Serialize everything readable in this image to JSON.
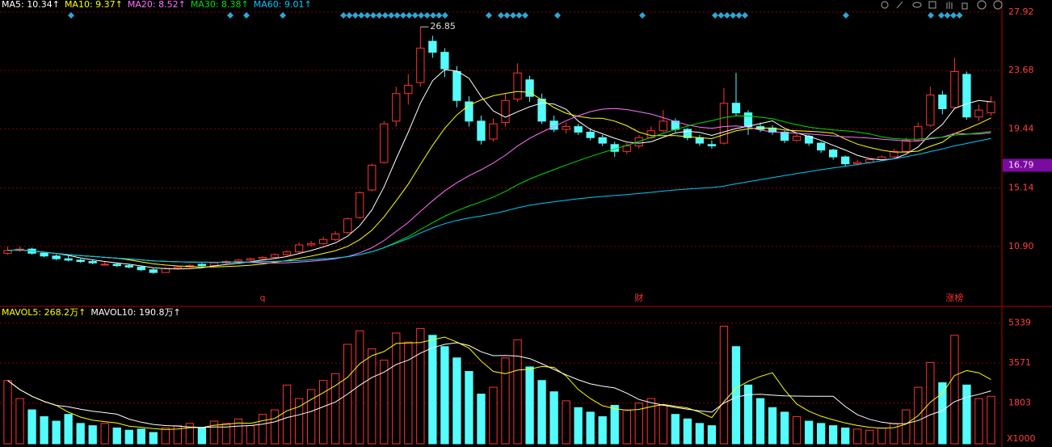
{
  "chart_data": {
    "type": "candlestick",
    "legend": [
      {
        "name": "MA5: 10.34↑",
        "color": "#ffffff",
        "period": 5
      },
      {
        "name": "MA10: 9.37↑",
        "color": "#ffff00",
        "period": 10
      },
      {
        "name": "MA20: 8.52↑",
        "color": "#ff70ff",
        "period": 20
      },
      {
        "name": "MA30: 8.38↑",
        "color": "#00e000",
        "period": 30
      },
      {
        "name": "MA60: 9.01↑",
        "color": "#00c8ff",
        "period": 60
      }
    ],
    "up_color": "#ff3232",
    "down_color": "#54fcfc",
    "ylim": [
      6.6,
      28.8
    ],
    "yticks": [
      {
        "value": 10.9,
        "label": "10.90"
      },
      15.14,
      19.44,
      23.68,
      27.92
    ],
    "last_price": 16.79,
    "ohlc": [
      [
        10.4,
        10.9,
        10.3,
        10.6
      ],
      [
        10.6,
        10.9,
        10.5,
        10.7
      ],
      [
        10.7,
        10.8,
        10.3,
        10.4
      ],
      [
        10.4,
        10.5,
        10.1,
        10.2
      ],
      [
        10.2,
        10.3,
        9.9,
        10.0
      ],
      [
        10.0,
        10.2,
        9.8,
        9.9
      ],
      [
        9.9,
        10.0,
        9.7,
        9.8
      ],
      [
        9.8,
        9.9,
        9.6,
        9.7
      ],
      [
        9.6,
        9.8,
        9.5,
        9.6
      ],
      [
        9.6,
        9.7,
        9.4,
        9.5
      ],
      [
        9.5,
        9.6,
        9.3,
        9.4
      ],
      [
        9.4,
        9.5,
        9.1,
        9.2
      ],
      [
        9.2,
        9.3,
        8.9,
        9.0
      ],
      [
        9.0,
        9.4,
        9.0,
        9.3
      ],
      [
        9.3,
        9.5,
        9.2,
        9.4
      ],
      [
        9.4,
        9.6,
        9.3,
        9.5
      ],
      [
        9.6,
        9.7,
        9.4,
        9.5
      ],
      [
        9.5,
        9.8,
        9.4,
        9.7
      ],
      [
        9.7,
        9.9,
        9.6,
        9.8
      ],
      [
        9.8,
        10.0,
        9.7,
        9.9
      ],
      [
        9.9,
        10.1,
        9.8,
        10.0
      ],
      [
        10.0,
        10.2,
        9.9,
        10.1
      ],
      [
        10.1,
        10.4,
        10.0,
        10.3
      ],
      [
        10.3,
        10.6,
        10.2,
        10.5
      ],
      [
        10.5,
        11.2,
        10.4,
        11.0
      ],
      [
        11.0,
        11.3,
        10.9,
        11.1
      ],
      [
        11.1,
        11.6,
        11.0,
        11.4
      ],
      [
        11.4,
        12.0,
        11.3,
        11.8
      ],
      [
        11.9,
        13.0,
        11.8,
        12.9
      ],
      [
        13.0,
        14.9,
        12.9,
        14.8
      ],
      [
        15.0,
        16.9,
        14.9,
        16.8
      ],
      [
        17.0,
        20.0,
        16.9,
        19.8
      ],
      [
        20.0,
        22.5,
        19.6,
        22.0
      ],
      [
        22.0,
        23.4,
        21.2,
        22.6
      ],
      [
        22.8,
        26.85,
        22.5,
        25.3
      ],
      [
        25.8,
        26.2,
        24.6,
        25.0
      ],
      [
        25.0,
        25.3,
        23.2,
        23.8
      ],
      [
        23.6,
        24.0,
        21.0,
        21.5
      ],
      [
        21.4,
        21.8,
        19.6,
        20.0
      ],
      [
        20.0,
        20.4,
        18.3,
        18.6
      ],
      [
        18.7,
        20.2,
        18.5,
        19.8
      ],
      [
        19.9,
        22.0,
        19.6,
        21.5
      ],
      [
        21.6,
        24.2,
        21.4,
        23.5
      ],
      [
        23.0,
        23.3,
        21.4,
        21.8
      ],
      [
        21.6,
        22.0,
        19.8,
        20.0
      ],
      [
        20.0,
        20.4,
        19.2,
        19.4
      ],
      [
        19.4,
        19.9,
        19.1,
        19.6
      ],
      [
        19.6,
        19.8,
        19.0,
        19.2
      ],
      [
        19.2,
        19.5,
        18.6,
        18.8
      ],
      [
        18.8,
        19.0,
        18.2,
        18.4
      ],
      [
        18.3,
        18.5,
        17.4,
        17.8
      ],
      [
        17.8,
        18.4,
        17.6,
        18.2
      ],
      [
        18.2,
        19.0,
        18.0,
        18.8
      ],
      [
        18.8,
        19.6,
        18.7,
        19.3
      ],
      [
        19.3,
        20.8,
        19.2,
        20.0
      ],
      [
        20.0,
        20.2,
        19.2,
        19.4
      ],
      [
        19.4,
        19.5,
        18.6,
        18.8
      ],
      [
        18.8,
        19.0,
        18.2,
        18.4
      ],
      [
        18.3,
        18.6,
        18.0,
        18.2
      ],
      [
        18.4,
        22.4,
        18.3,
        21.3
      ],
      [
        21.3,
        23.5,
        20.4,
        20.6
      ],
      [
        20.6,
        20.8,
        19.0,
        19.6
      ],
      [
        19.6,
        19.9,
        19.2,
        19.4
      ],
      [
        19.5,
        19.7,
        19.0,
        19.2
      ],
      [
        19.2,
        19.3,
        18.4,
        18.6
      ],
      [
        18.6,
        19.1,
        18.5,
        18.9
      ],
      [
        18.9,
        19.0,
        18.2,
        18.4
      ],
      [
        18.4,
        18.5,
        17.7,
        17.9
      ],
      [
        17.9,
        18.0,
        17.2,
        17.4
      ],
      [
        17.4,
        17.5,
        16.7,
        16.9
      ],
      [
        16.9,
        17.2,
        16.8,
        17.0
      ],
      [
        17.0,
        17.3,
        16.9,
        17.2
      ],
      [
        17.2,
        17.5,
        17.1,
        17.4
      ],
      [
        17.4,
        18.0,
        17.3,
        17.8
      ],
      [
        17.8,
        18.8,
        17.7,
        18.6
      ],
      [
        18.6,
        19.9,
        18.5,
        19.6
      ],
      [
        19.7,
        22.5,
        19.6,
        21.9
      ],
      [
        21.9,
        22.2,
        20.5,
        20.9
      ],
      [
        21.0,
        24.6,
        20.9,
        23.6
      ],
      [
        23.4,
        23.6,
        20.1,
        20.3
      ],
      [
        20.3,
        21.2,
        20.0,
        20.8
      ],
      [
        20.6,
        21.8,
        20.4,
        21.4
      ]
    ],
    "volume": [
      2800,
      2000,
      1500,
      1200,
      1000,
      1300,
      900,
      800,
      900,
      700,
      600,
      650,
      500,
      700,
      800,
      900,
      700,
      1000,
      900,
      1100,
      800,
      1300,
      1500,
      2600,
      2000,
      2400,
      2800,
      3100,
      4400,
      5000,
      4200,
      3700,
      4900,
      4500,
      5100,
      4800,
      4300,
      3800,
      3200,
      2200,
      2500,
      3800,
      4600,
      3400,
      2800,
      2300,
      1900,
      1600,
      1400,
      1200,
      1700,
      1500,
      1800,
      2000,
      1700,
      1300,
      1100,
      900,
      800,
      5200,
      4300,
      2600,
      2000,
      1600,
      1400,
      1200,
      1000,
      900,
      800,
      700,
      650,
      600,
      700,
      900,
      1500,
      2500,
      3600,
      2700,
      4800,
      2600,
      2000,
      2100
    ],
    "volume_panel": {
      "legend": [
        {
          "name": "MAVOL5: 268.2万↑",
          "color": "#ffff00",
          "period": 5
        },
        {
          "name": "MAVOL10: 190.8万↑",
          "color": "#ffffff",
          "period": 10
        }
      ],
      "ylim": [
        0,
        5830
      ],
      "yticks": [
        1803,
        3571,
        5339
      ],
      "unit": "X1000"
    },
    "markers": [
      {
        "label": "q",
        "index": 21
      },
      {
        "label": "财",
        "index": 52
      },
      {
        "label": "涨榜",
        "index": 78
      }
    ]
  }
}
